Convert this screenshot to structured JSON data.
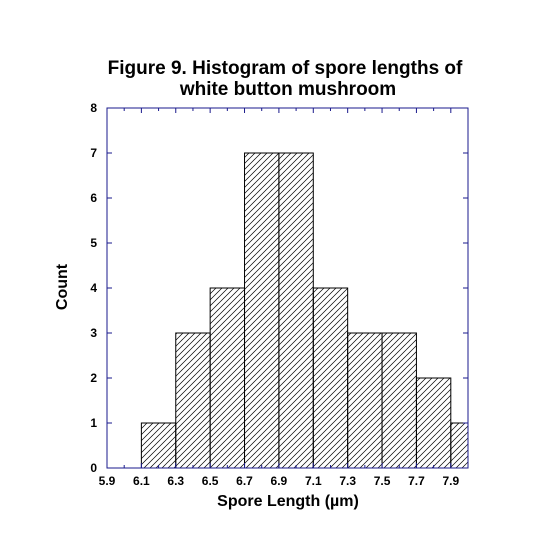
{
  "chart_data": {
    "type": "bar",
    "title": {
      "line1": "Figure 9. Histogram of spore lengths of",
      "line2": "white button mushroom"
    },
    "xlabel": "Spore Length (µm)",
    "ylabel": "Count",
    "xlim": [
      5.9,
      8.0
    ],
    "ylim": [
      0,
      8
    ],
    "x_ticks": [
      "5.9",
      "6.1",
      "6.3",
      "6.5",
      "6.7",
      "6.9",
      "7.1",
      "7.3",
      "7.5",
      "7.7",
      "7.9"
    ],
    "y_ticks": [
      "0",
      "1",
      "2",
      "3",
      "4",
      "5",
      "6",
      "7",
      "8"
    ],
    "bin_edges": [
      6.1,
      6.3,
      6.5,
      6.7,
      6.9,
      7.1,
      7.3,
      7.5,
      7.7,
      7.9
    ],
    "bins": [
      {
        "start": 6.1,
        "end": 6.3,
        "count": 1
      },
      {
        "start": 6.3,
        "end": 6.5,
        "count": 3
      },
      {
        "start": 6.5,
        "end": 6.7,
        "count": 4
      },
      {
        "start": 6.7,
        "end": 6.9,
        "count": 7
      },
      {
        "start": 6.9,
        "end": 7.1,
        "count": 7
      },
      {
        "start": 7.1,
        "end": 7.3,
        "count": 4
      },
      {
        "start": 7.3,
        "end": 7.5,
        "count": 3
      },
      {
        "start": 7.5,
        "end": 7.7,
        "count": 3
      },
      {
        "start": 7.7,
        "end": 7.9,
        "count": 2
      },
      {
        "start": 7.9,
        "end": 8.1,
        "count": 1
      }
    ],
    "bar_fill": "diagonal hatch",
    "grid": false,
    "legend": "none",
    "colors": {
      "frame": "#1a1a8c",
      "bar_stroke": "#000000",
      "hatch": "#000000",
      "text": "#000000"
    }
  }
}
